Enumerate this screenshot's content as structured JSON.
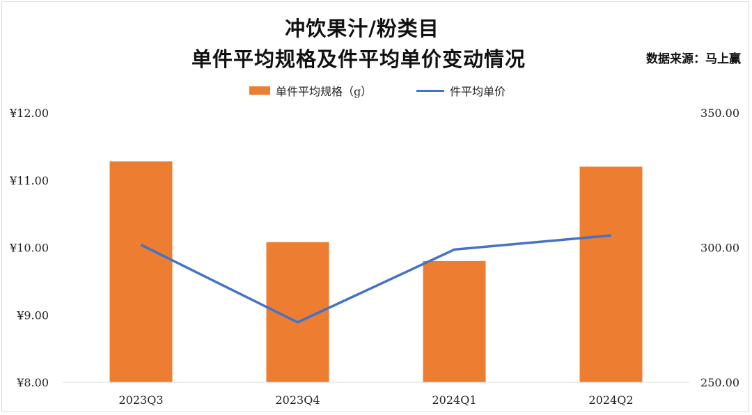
{
  "title_line1": "冲饮果汁/粉类目",
  "title_line2": "单件平均规格及件平均单价变动情况",
  "source": "数据来源：马上赢",
  "colors": {
    "bar": "#ed7d31",
    "line": "#4472c4",
    "axis": "#d9d9d9"
  },
  "chart_data": {
    "type": "bar",
    "categories": [
      "2023Q3",
      "2023Q4",
      "2024Q1",
      "2024Q2"
    ],
    "series": [
      {
        "name": "单件平均规格（g）",
        "type": "bar",
        "axis": "right",
        "values": [
          332,
          302,
          295,
          330
        ]
      },
      {
        "name": "件平均单价",
        "type": "line",
        "axis": "left",
        "values": [
          10.04,
          8.89,
          9.97,
          10.18
        ]
      }
    ],
    "left_axis": {
      "ylim": [
        8,
        12
      ],
      "ticks": [
        "¥8.00",
        "¥9.00",
        "¥10.00",
        "¥11.00",
        "¥12.00"
      ]
    },
    "right_axis": {
      "ylim": [
        250,
        350
      ],
      "ticks": [
        "250.00",
        "300.00",
        "350.00"
      ]
    },
    "grid": false,
    "legend_position": "top"
  }
}
